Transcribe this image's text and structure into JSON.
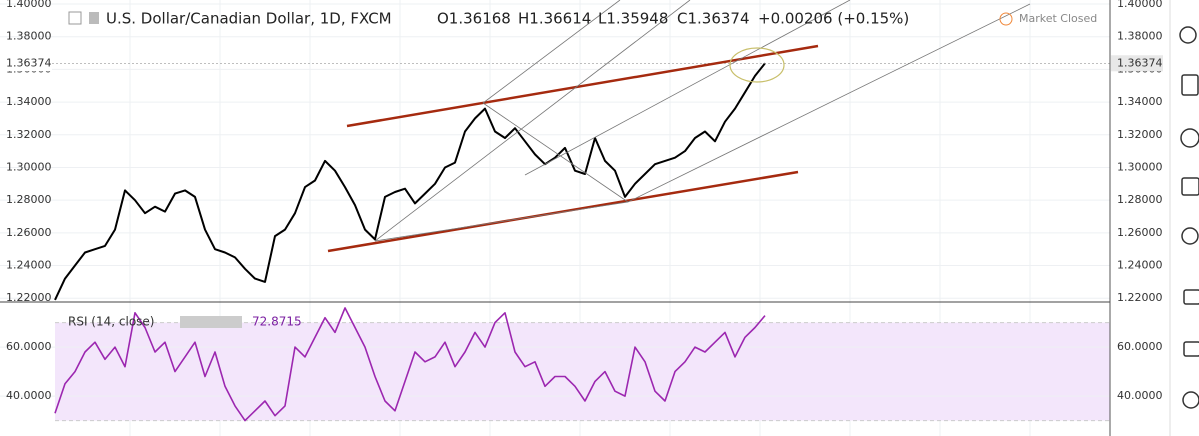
{
  "header": {
    "title": "U.S. Dollar/Canadian Dollar, 1D, FXCM",
    "open": "O1.36168",
    "high": "H1.36614",
    "low": "L1.35948",
    "close": "C1.36374",
    "change": "+0.00206 (+0.15%)",
    "status": "Market Closed"
  },
  "chart_data": [
    {
      "type": "line",
      "ylim": [
        1.2177,
        1.40245
      ],
      "yticks": [
        {
          "value": 1.22,
          "label": "1.22000"
        },
        {
          "value": 1.24,
          "label": "1.24000"
        },
        {
          "value": 1.26,
          "label": "1.26000"
        },
        {
          "value": 1.28,
          "label": "1.28000"
        },
        {
          "value": 1.3,
          "label": "1.30000"
        },
        {
          "value": 1.32,
          "label": "1.32000"
        },
        {
          "value": 1.34,
          "label": "1.34000"
        },
        {
          "value": 1.36,
          "label": "1.36000"
        },
        {
          "value": 1.38,
          "label": "1.38000"
        },
        {
          "value": 1.4,
          "label": "1.40000"
        }
      ],
      "last_price": {
        "value": 1.36374,
        "label": "1.36374"
      },
      "series": [
        {
          "color": "#000000",
          "values": [
            1.219,
            1.232,
            1.24,
            1.248,
            1.25,
            1.252,
            1.262,
            1.286,
            1.28,
            1.272,
            1.276,
            1.273,
            1.284,
            1.286,
            1.282,
            1.262,
            1.25,
            1.248,
            1.245,
            1.238,
            1.232,
            1.23,
            1.258,
            1.262,
            1.272,
            1.288,
            1.292,
            1.304,
            1.298,
            1.288,
            1.277,
            1.262,
            1.256,
            1.282,
            1.285,
            1.287,
            1.278,
            1.284,
            1.29,
            1.3,
            1.303,
            1.322,
            1.33,
            1.336,
            1.322,
            1.318,
            1.324,
            1.316,
            1.308,
            1.302,
            1.306,
            1.312,
            1.298,
            1.296,
            1.318,
            1.304,
            1.298,
            1.282,
            1.29,
            1.296,
            1.302,
            1.304,
            1.306,
            1.31,
            1.318,
            1.322,
            1.316,
            1.328,
            1.336,
            1.346,
            1.356,
            1.36374
          ]
        }
      ]
    },
    {
      "type": "line",
      "title": "RSI (14, close)",
      "ylim": [
        23.7,
        78
      ],
      "yticks": [
        {
          "value": 40,
          "label": "40.0000"
        },
        {
          "value": 60,
          "label": "60.0000"
        }
      ],
      "band": [
        30,
        70
      ],
      "band_color": "#f3e6fb",
      "last_value": {
        "value": 72.8715,
        "label": "72.8715"
      },
      "series": [
        {
          "color": "#9c27b0",
          "values": [
            33,
            45,
            50,
            58,
            62,
            55,
            60,
            52,
            74,
            68,
            58,
            62,
            50,
            56,
            62,
            48,
            58,
            44,
            36,
            30,
            34,
            38,
            32,
            36,
            60,
            56,
            64,
            72,
            66,
            76,
            68,
            60,
            48,
            38,
            34,
            46,
            58,
            54,
            56,
            62,
            52,
            58,
            66,
            60,
            70,
            74,
            58,
            52,
            54,
            44,
            48,
            48,
            44,
            38,
            46,
            50,
            42,
            40,
            60,
            54,
            42,
            38,
            50,
            54,
            60,
            58,
            62,
            66,
            56,
            64,
            68,
            72.8715
          ]
        }
      ]
    }
  ]
}
